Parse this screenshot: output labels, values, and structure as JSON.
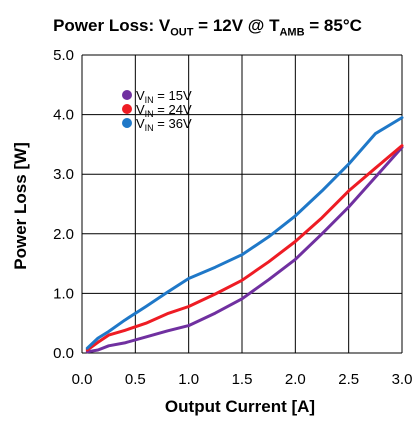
{
  "chart_data": {
    "type": "line",
    "title_parts": {
      "prefix": "Power Loss: V",
      "vout_sub": "OUT",
      "mid": " = 12V @ T",
      "tamb_sub": "AMB",
      "suffix": " = 85°C"
    },
    "xlabel": "Output Current [A]",
    "ylabel": "Power Loss [W]",
    "xlim": [
      0.0,
      3.0
    ],
    "ylim": [
      0.0,
      5.0
    ],
    "x_ticks": [
      "0.0",
      "0.5",
      "1.0",
      "1.5",
      "2.0",
      "2.5",
      "3.0"
    ],
    "y_ticks": [
      "0.0",
      "1.0",
      "2.0",
      "3.0",
      "4.0",
      "5.0"
    ],
    "grid": true,
    "legend_position": "top-left",
    "series": [
      {
        "name": "VIN = 15V",
        "label_main": "V",
        "label_sub": "IN",
        "label_tail": " = 15V",
        "color": "#7030a0",
        "x": [
          0.05,
          0.15,
          0.25,
          0.4,
          0.6,
          0.8,
          1.0,
          1.25,
          1.5,
          1.75,
          2.0,
          2.25,
          2.5,
          2.75,
          3.0
        ],
        "y": [
          0.02,
          0.05,
          0.12,
          0.17,
          0.27,
          0.37,
          0.46,
          0.67,
          0.91,
          1.23,
          1.57,
          2.0,
          2.45,
          2.95,
          3.45
        ]
      },
      {
        "name": "VIN = 24V",
        "label_main": "V",
        "label_sub": "IN",
        "label_tail": " = 24V",
        "color": "#ee1c24",
        "x": [
          0.05,
          0.15,
          0.25,
          0.4,
          0.6,
          0.8,
          1.0,
          1.25,
          1.5,
          1.75,
          2.0,
          2.25,
          2.5,
          2.75,
          3.0
        ],
        "y": [
          0.05,
          0.18,
          0.3,
          0.38,
          0.5,
          0.66,
          0.78,
          0.99,
          1.22,
          1.53,
          1.87,
          2.27,
          2.72,
          3.1,
          3.48
        ]
      },
      {
        "name": "VIN = 36V",
        "label_main": "V",
        "label_sub": "IN",
        "label_tail": " = 36V",
        "color": "#1f78c8",
        "x": [
          0.05,
          0.15,
          0.25,
          0.4,
          0.6,
          0.8,
          1.0,
          1.25,
          1.5,
          1.75,
          2.0,
          2.25,
          2.5,
          2.75,
          3.0
        ],
        "y": [
          0.08,
          0.25,
          0.36,
          0.55,
          0.78,
          1.02,
          1.25,
          1.44,
          1.65,
          1.95,
          2.3,
          2.72,
          3.17,
          3.68,
          3.95
        ]
      }
    ]
  }
}
